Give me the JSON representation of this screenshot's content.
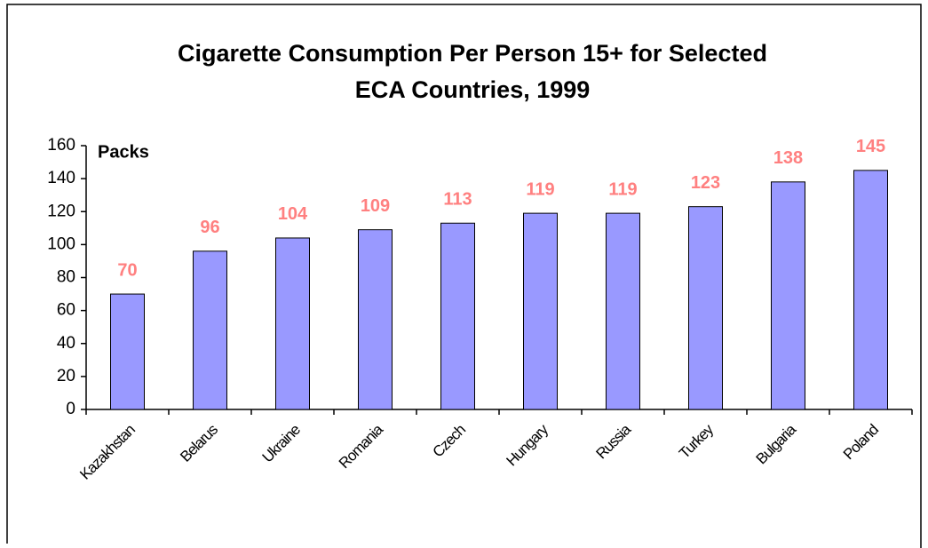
{
  "chart_data": {
    "type": "bar",
    "title": [
      "Cigarette Consumption Per Person 15+ for Selected",
      "ECA Countries, 1999"
    ],
    "ylabel": "Packs",
    "categories": [
      "Kazakhstan",
      "Belarus",
      "Ukraine",
      "Romania",
      "Czech",
      "Hungary",
      "Russia",
      "Turkey",
      "Bulgaria",
      "Poland"
    ],
    "values": [
      70,
      96,
      104,
      109,
      113,
      119,
      119,
      123,
      138,
      145
    ],
    "color": "#9999ff",
    "label_color": "#ff8080",
    "ylim": [
      0,
      160
    ],
    "yticks": [
      0,
      20,
      40,
      60,
      80,
      100,
      120,
      140,
      160
    ]
  }
}
